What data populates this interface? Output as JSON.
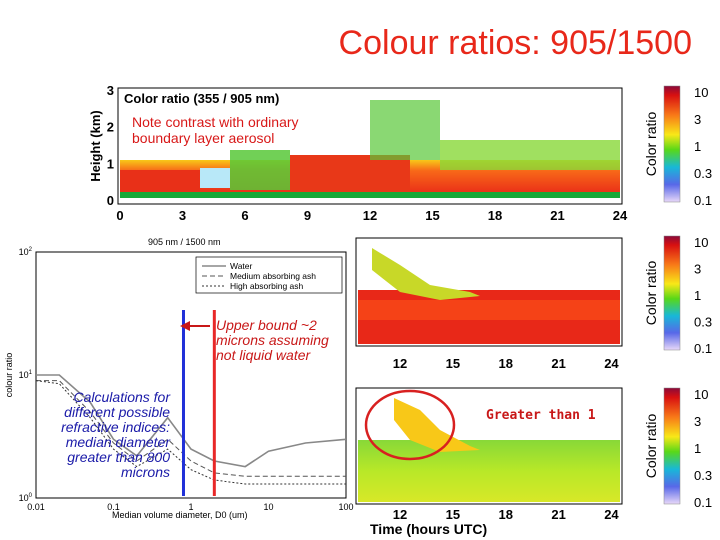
{
  "title": "Colour ratios: 905/1500",
  "annotations": {
    "contrast_note": "Note contrast with ordinary boundary layer aerosol",
    "upper_bound": "Upper bound ~2 microns assuming not liquid water",
    "calculations": "Calculations for different possible refractive indices: median diameter greater than 800 microns",
    "greater_than": "Greater than 1"
  },
  "colors": {
    "title": "#e8281a",
    "annotation_red": "#c81818",
    "annotation_blue": "#1a1aa8",
    "circle": "#d82020"
  },
  "chart_data": [
    {
      "type": "heatmap",
      "title": "Color ratio (355 / 905 nm)",
      "ylabel": "Height (km)",
      "xlabel": "",
      "xlim": [
        0,
        24
      ],
      "ylim": [
        0,
        3
      ],
      "xticks": [
        "0",
        "3",
        "6",
        "9",
        "12",
        "15",
        "18",
        "21",
        "24"
      ],
      "yticks": [
        "0",
        "1",
        "2",
        "3"
      ],
      "colorbar": {
        "label": "Color ratio",
        "ticks": [
          "10",
          "3",
          "1",
          "0.3",
          "0.1"
        ],
        "scale": "log"
      }
    },
    {
      "type": "line",
      "title": "905 nm / 1500 nm",
      "xlabel": "Median volume diameter, D0 (um)",
      "ylabel": "colour ratio",
      "xscale": "log",
      "yscale": "log",
      "xlim": [
        0.01,
        100
      ],
      "ylim": [
        1,
        100
      ],
      "xticks": [
        "0.01",
        "0.1",
        "1",
        "10",
        "100"
      ],
      "yticks_exp": [
        "10",
        "10",
        "10"
      ],
      "yticks_pow": [
        "2",
        "1",
        "0"
      ],
      "legend": [
        "Water",
        "Medium absorbing ash",
        "High absorbing ash"
      ],
      "vlines": [
        0.8,
        2
      ],
      "series": [
        {
          "name": "Water",
          "x": [
            0.01,
            0.02,
            0.05,
            0.1,
            0.2,
            0.5,
            1,
            2,
            5,
            10,
            30,
            100
          ],
          "y": [
            10,
            10,
            6,
            3,
            2.2,
            4.5,
            2.5,
            2,
            1.8,
            2.4,
            2.8,
            3
          ]
        },
        {
          "name": "Medium absorbing ash",
          "x": [
            0.01,
            0.02,
            0.05,
            0.1,
            0.2,
            0.5,
            1,
            2,
            5,
            10,
            30,
            100
          ],
          "y": [
            9,
            9,
            5,
            2.8,
            2,
            3,
            2,
            1.6,
            1.5,
            1.5,
            1.5,
            1.5
          ]
        },
        {
          "name": "High absorbing ash",
          "x": [
            0.01,
            0.02,
            0.05,
            0.1,
            0.2,
            0.5,
            1,
            2,
            5,
            10,
            30,
            100
          ],
          "y": [
            9,
            8.5,
            4.5,
            2.5,
            1.8,
            2.5,
            1.7,
            1.4,
            1.3,
            1.3,
            1.3,
            1.3
          ]
        }
      ]
    },
    {
      "type": "heatmap",
      "title": "",
      "xlim": [
        0,
        24
      ],
      "xticks": [
        "12",
        "15",
        "18",
        "21",
        "24"
      ],
      "colorbar": {
        "label": "Color ratio",
        "ticks": [
          "10",
          "3",
          "1",
          "0.3",
          "0.1"
        ],
        "scale": "log"
      }
    },
    {
      "type": "heatmap",
      "title": "",
      "xlabel": "Time (hours UTC)",
      "xlim": [
        0,
        24
      ],
      "xticks": [
        "12",
        "15",
        "18",
        "21",
        "24"
      ],
      "colorbar": {
        "label": "Color ratio",
        "ticks": [
          "10",
          "3",
          "1",
          "0.3",
          "0.1"
        ],
        "scale": "log"
      }
    }
  ]
}
